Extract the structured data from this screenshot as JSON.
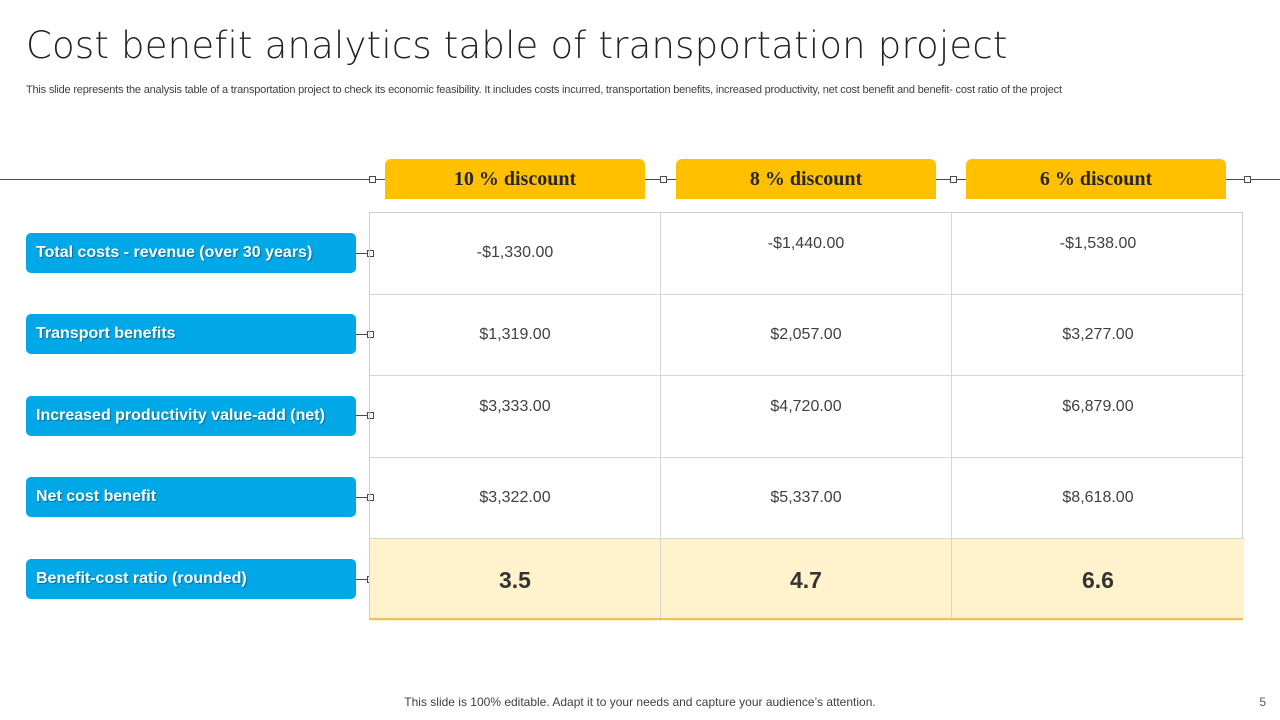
{
  "slide": {
    "title": "Cost benefit analytics table of transportation project",
    "subtitle": "This slide represents the analysis table of a transportation project to check its economic feasibility. It includes costs incurred, transportation benefits, increased productivity, net cost benefit and benefit- cost ratio of the project",
    "footer": "This slide is 100% editable. Adapt it to your needs and capture your audience’s attention.",
    "page_number": "5"
  },
  "table": {
    "columns": [
      "10 % discount",
      "8 % discount",
      "6 % discount"
    ],
    "rows": [
      {
        "label": "Total costs  - revenue (over 30 years)",
        "values": [
          "-$1,330.00",
          "-$1,440.00",
          "-$1,538.00"
        ]
      },
      {
        "label": "Transport benefits",
        "values": [
          "$1,319.00",
          "$2,057.00",
          "$3,277.00"
        ]
      },
      {
        "label": "Increased productivity value-add (net)",
        "values": [
          "$3,333.00",
          "$4,720.00",
          "$6,879.00"
        ]
      },
      {
        "label": "Net cost benefit",
        "values": [
          "$3,322.00",
          "$5,337.00",
          "$8,618.00"
        ]
      },
      {
        "label": "Benefit-cost ratio (rounded)",
        "values": [
          "3.5",
          "4.7",
          "6.6"
        ]
      }
    ]
  },
  "colors": {
    "header_accent": "#FFC000",
    "row_label": "#00A8E8",
    "ratio_highlight": "#FFF2CC"
  }
}
